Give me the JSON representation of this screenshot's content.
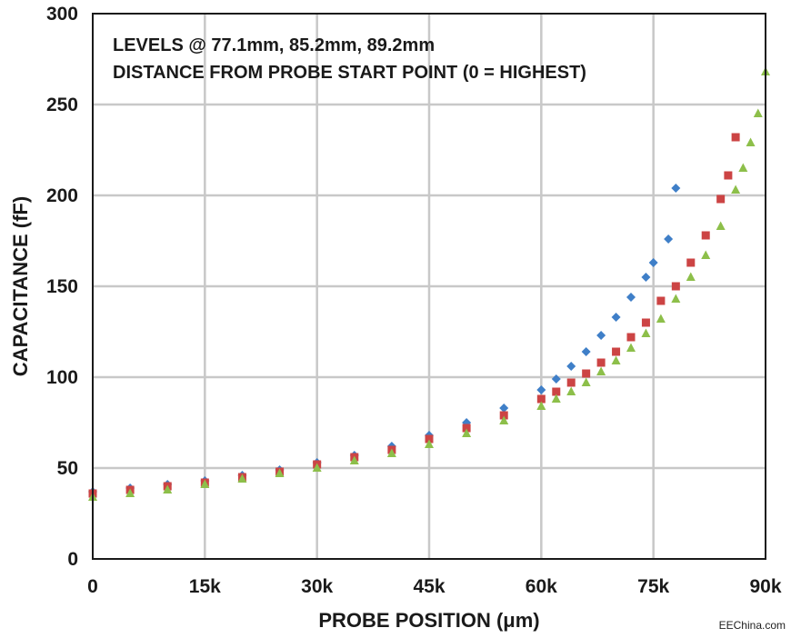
{
  "chart_data": {
    "type": "scatter",
    "annotation_lines": [
      "LEVELS @ 77.1mm, 85.2mm, 89.2mm",
      "DISTANCE FROM PROBE START POINT (0 = HIGHEST)"
    ],
    "xlabel": "PROBE POSITION (μm)",
    "ylabel": "CAPACITANCE (fF)",
    "xlim": [
      0,
      90000
    ],
    "ylim": [
      0,
      300
    ],
    "x_ticks": [
      0,
      15000,
      30000,
      45000,
      60000,
      75000,
      90000
    ],
    "x_tick_labels": [
      "0",
      "15k",
      "30k",
      "45k",
      "60k",
      "75k",
      "90k"
    ],
    "y_ticks": [
      0,
      50,
      100,
      150,
      200,
      250,
      300
    ],
    "y_tick_labels": [
      "0",
      "50",
      "100",
      "150",
      "200",
      "250",
      "300"
    ],
    "grid": true,
    "legend": "none",
    "series": [
      {
        "marker": "diamond",
        "color": "#3f7fc8",
        "x": [
          0,
          5000,
          10000,
          15000,
          20000,
          25000,
          30000,
          35000,
          40000,
          45000,
          50000,
          55000,
          60000,
          62000,
          64000,
          66000,
          68000,
          70000,
          72000,
          74000,
          75000,
          77000,
          78000
        ],
        "y": [
          37,
          39,
          41,
          43,
          46,
          49,
          53,
          57,
          62,
          68,
          75,
          83,
          93,
          99,
          106,
          114,
          123,
          133,
          144,
          155,
          163,
          176,
          204
        ]
      },
      {
        "marker": "square",
        "color": "#cc4444",
        "x": [
          0,
          5000,
          10000,
          15000,
          20000,
          25000,
          30000,
          35000,
          40000,
          45000,
          50000,
          55000,
          60000,
          62000,
          64000,
          66000,
          68000,
          70000,
          72000,
          74000,
          76000,
          78000,
          80000,
          82000,
          84000,
          85000,
          86000
        ],
        "y": [
          36,
          38,
          40,
          42,
          45,
          48,
          52,
          56,
          60,
          66,
          72,
          79,
          88,
          92,
          97,
          102,
          108,
          114,
          122,
          130,
          142,
          150,
          163,
          178,
          198,
          211,
          232
        ]
      },
      {
        "marker": "triangle",
        "color": "#8dbf4a",
        "x": [
          0,
          5000,
          10000,
          15000,
          20000,
          25000,
          30000,
          35000,
          40000,
          45000,
          50000,
          55000,
          60000,
          62000,
          64000,
          66000,
          68000,
          70000,
          72000,
          74000,
          76000,
          78000,
          80000,
          82000,
          84000,
          86000,
          87000,
          88000,
          89000,
          90000
        ],
        "y": [
          34,
          36,
          38,
          41,
          44,
          47,
          50,
          54,
          58,
          63,
          69,
          76,
          84,
          88,
          92,
          97,
          103,
          109,
          116,
          124,
          132,
          143,
          155,
          167,
          183,
          203,
          215,
          229,
          245,
          268
        ]
      }
    ]
  },
  "watermark": "EEChina.com"
}
